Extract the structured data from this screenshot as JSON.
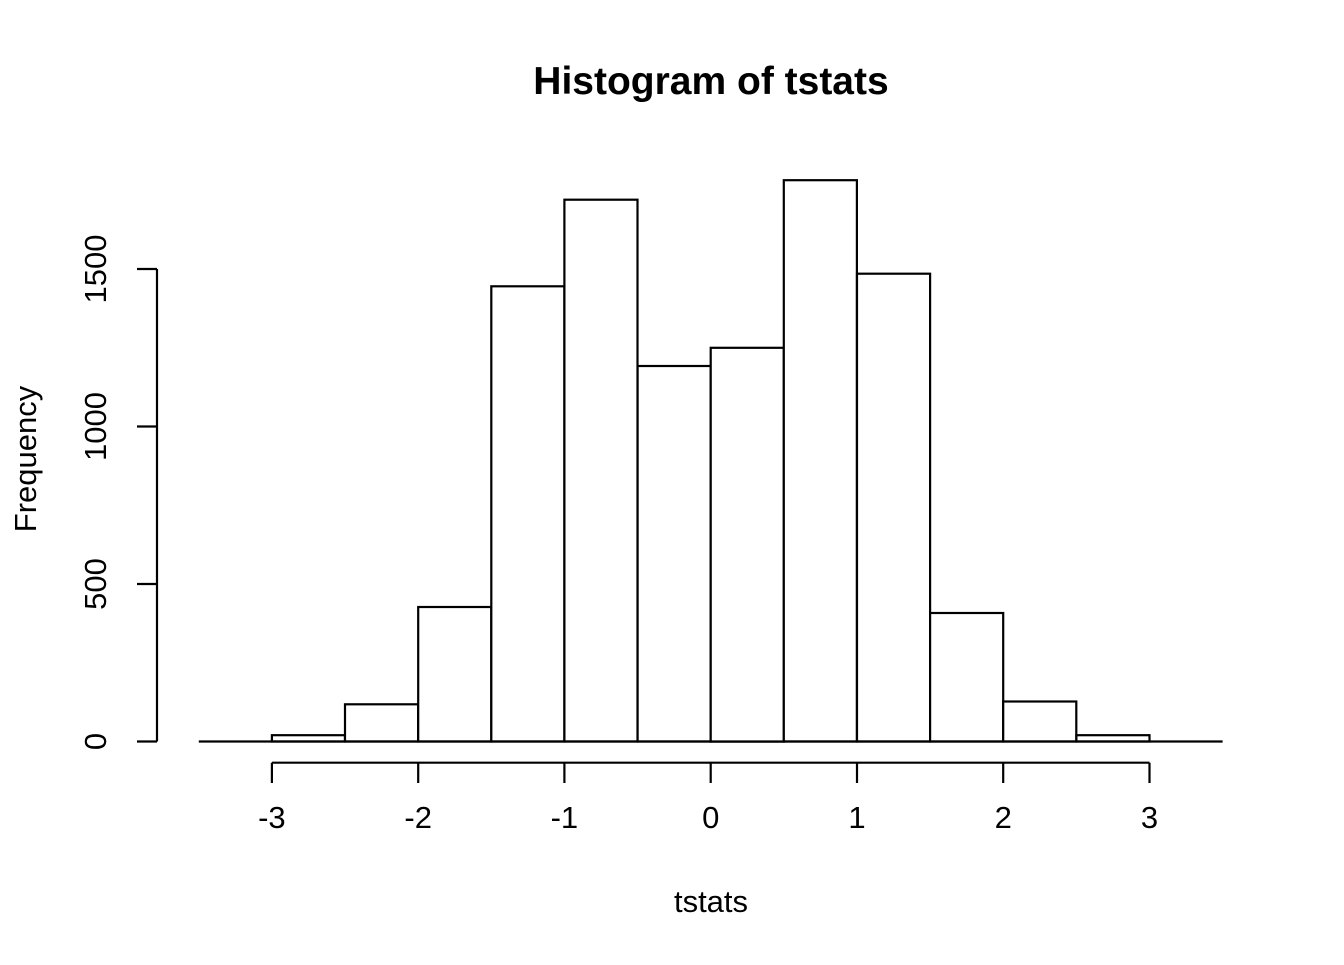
{
  "page": {
    "background": "#ffffff",
    "foreground": "#000000"
  },
  "chart_data": {
    "type": "bar",
    "subtype": "histogram",
    "title": "Histogram of tstats",
    "xlabel": "tstats",
    "ylabel": "Frequency",
    "breaks": [
      -3,
      -2.5,
      -2,
      -1.5,
      -1,
      -0.5,
      0,
      0.5,
      1,
      1.5,
      2,
      2.5,
      3
    ],
    "counts": [
      20,
      118,
      427,
      1445,
      1720,
      1192,
      1250,
      1782,
      1485,
      408,
      127,
      20
    ],
    "x_tick_labels": [
      "-3",
      "-2",
      "-1",
      "0",
      "1",
      "2",
      "3"
    ],
    "x_tick_values": [
      -3,
      -2,
      -1,
      0,
      1,
      2,
      3
    ],
    "y_tick_labels": [
      "0",
      "500",
      "1000",
      "1500"
    ],
    "y_tick_values": [
      0,
      500,
      1000,
      1500
    ],
    "xlim": [
      -3.5,
      3.5
    ],
    "ylim": [
      0,
      1782
    ],
    "bar_fill": "#ffffff",
    "stroke_color": "#000000",
    "grid": false,
    "legend": null
  }
}
